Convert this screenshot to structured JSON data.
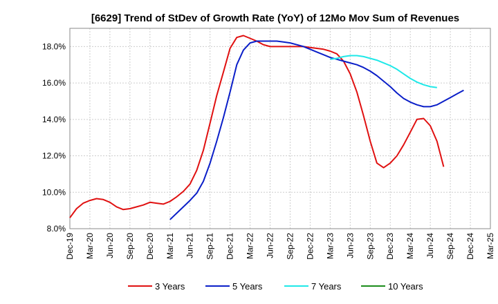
{
  "chart_data": {
    "type": "line",
    "title": "[6629]  Trend of StDev of Growth Rate (YoY) of 12Mo Mov Sum of Revenues",
    "xlabel": "",
    "ylabel": "",
    "x_ticks": [
      "Dec-19",
      "Mar-20",
      "Jun-20",
      "Sep-20",
      "Dec-20",
      "Mar-21",
      "Jun-21",
      "Sep-21",
      "Dec-21",
      "Mar-22",
      "Jun-22",
      "Sep-22",
      "Dec-22",
      "Mar-23",
      "Jun-23",
      "Sep-23",
      "Dec-23",
      "Mar-24",
      "Jun-24",
      "Sep-24",
      "Dec-24",
      "Mar-25"
    ],
    "y_ticks": [
      "8.0%",
      "10.0%",
      "12.0%",
      "14.0%",
      "16.0%",
      "18.0%"
    ],
    "ylim": [
      8.0,
      19.0
    ],
    "grid": true,
    "legend_position": "bottom",
    "series": [
      {
        "name": "3 Years",
        "color": "#e01010",
        "start_index": 0,
        "values": [
          8.6,
          9.1,
          9.4,
          9.55,
          9.65,
          9.6,
          9.45,
          9.2,
          9.05,
          9.1,
          9.2,
          9.3,
          9.45,
          9.4,
          9.35,
          9.5,
          9.75,
          10.05,
          10.45,
          11.2,
          12.3,
          13.8,
          15.3,
          16.6,
          17.9,
          18.5,
          18.6,
          18.45,
          18.3,
          18.1,
          18.0,
          18.0,
          18.0,
          18.0,
          18.0,
          18.0,
          17.95,
          17.9,
          17.85,
          17.75,
          17.6,
          17.2,
          16.5,
          15.5,
          14.2,
          12.8,
          11.6,
          11.35,
          11.6,
          12.0,
          12.6,
          13.3,
          14.0,
          14.05,
          13.65,
          12.8,
          11.4
        ]
      },
      {
        "name": "5 Years",
        "color": "#0a1ec8",
        "start_index": 15,
        "values": [
          8.5,
          8.85,
          9.2,
          9.55,
          9.95,
          10.6,
          11.6,
          12.8,
          14.1,
          15.5,
          17.0,
          17.8,
          18.2,
          18.3,
          18.3,
          18.3,
          18.3,
          18.25,
          18.2,
          18.1,
          18.0,
          17.85,
          17.7,
          17.55,
          17.4,
          17.3,
          17.2,
          17.1,
          17.0,
          16.85,
          16.65,
          16.4,
          16.1,
          15.8,
          15.45,
          15.15,
          14.95,
          14.8,
          14.7,
          14.7,
          14.8,
          15.0,
          15.2,
          15.4,
          15.6
        ]
      },
      {
        "name": "7 Years",
        "color": "#1ee8e8",
        "start_index": 39,
        "values": [
          17.3,
          17.35,
          17.45,
          17.5,
          17.5,
          17.45,
          17.35,
          17.25,
          17.1,
          16.95,
          16.75,
          16.5,
          16.25,
          16.05,
          15.9,
          15.8,
          15.75
        ]
      },
      {
        "name": "10 Years",
        "color": "#1a8c1a",
        "start_index": 0,
        "values": []
      }
    ]
  }
}
